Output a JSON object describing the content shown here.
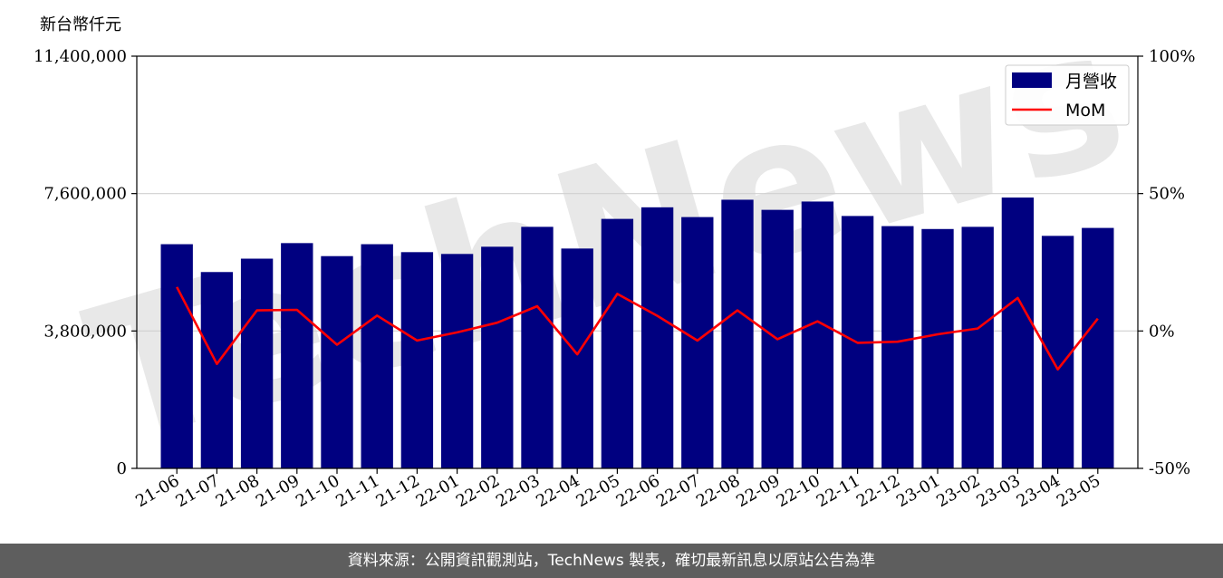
{
  "chart_data": {
    "type": "bar",
    "ylabel": "新台幣仟元",
    "categories": [
      "21-06",
      "21-07",
      "21-08",
      "21-09",
      "21-10",
      "21-11",
      "21-12",
      "22-01",
      "22-02",
      "22-03",
      "22-04",
      "22-05",
      "22-06",
      "22-07",
      "22-08",
      "22-09",
      "22-10",
      "22-11",
      "22-12",
      "23-01",
      "23-02",
      "23-03",
      "23-04",
      "23-05"
    ],
    "left_axis": {
      "ylim": [
        0,
        11400000
      ],
      "ticks": [
        0,
        3800000,
        7600000,
        11400000
      ],
      "tick_labels": [
        "0",
        "3,800,000",
        "7,600,000",
        "11,400,000"
      ]
    },
    "right_axis": {
      "ylim": [
        -50,
        100
      ],
      "ticks": [
        -50,
        0,
        50,
        100
      ],
      "tick_labels": [
        "-50%",
        "0%",
        "50%",
        "100%"
      ]
    },
    "series": [
      {
        "name": "月營收",
        "kind": "bar",
        "axis": "left",
        "color": "#000080",
        "values": [
          6200000,
          5430000,
          5800000,
          6230000,
          5870000,
          6200000,
          5980000,
          5930000,
          6130000,
          6680000,
          6080000,
          6900000,
          7220000,
          6950000,
          7430000,
          7150000,
          7380000,
          6980000,
          6700000,
          6620000,
          6680000,
          7490000,
          6430000,
          6650000
        ]
      },
      {
        "name": "MoM",
        "kind": "line",
        "axis": "right",
        "color": "#ff0000",
        "values": [
          16,
          -12,
          7.5,
          7.7,
          -5,
          5.6,
          -3.5,
          -0.5,
          3,
          9,
          -8.5,
          13.5,
          5.5,
          -3.5,
          7.5,
          -3,
          3.5,
          -4.3,
          -3.9,
          -1.2,
          0.9,
          12,
          -14,
          4.5
        ]
      }
    ],
    "gridlines": "horizontal",
    "legend_position": "top-right",
    "watermark": "TechNews"
  },
  "footer": {
    "text": "資料來源：公開資訊觀測站，TechNews 製表，確切最新訊息以原站公告為準"
  }
}
